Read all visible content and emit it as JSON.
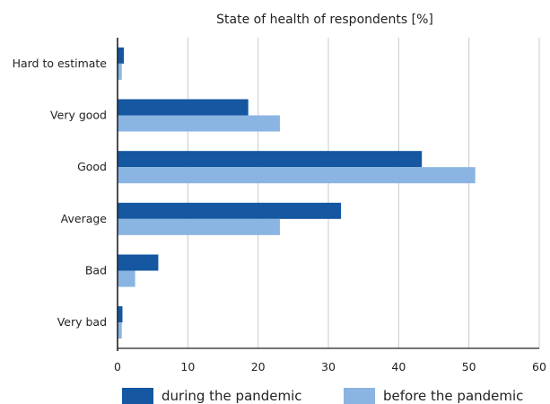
{
  "chart_data": {
    "type": "bar",
    "orientation": "horizontal",
    "title": "State of health of respondents [%]",
    "categories": [
      "Hard to estimate",
      "Very good",
      "Good",
      "Average",
      "Bad",
      "Very bad"
    ],
    "series": [
      {
        "name": "during the pandemic",
        "color": "#1557a0",
        "values": [
          0.9,
          18.6,
          43.3,
          31.8,
          5.8,
          0.7
        ]
      },
      {
        "name": "before the pandemic",
        "color": "#8ab4e2",
        "values": [
          0.6,
          23.1,
          50.9,
          23.1,
          2.5,
          0.6
        ]
      }
    ],
    "xlim": [
      0,
      60
    ],
    "xticks": [
      0,
      10,
      20,
      30,
      40,
      50,
      60
    ],
    "grid": true,
    "legend": "bottom"
  }
}
